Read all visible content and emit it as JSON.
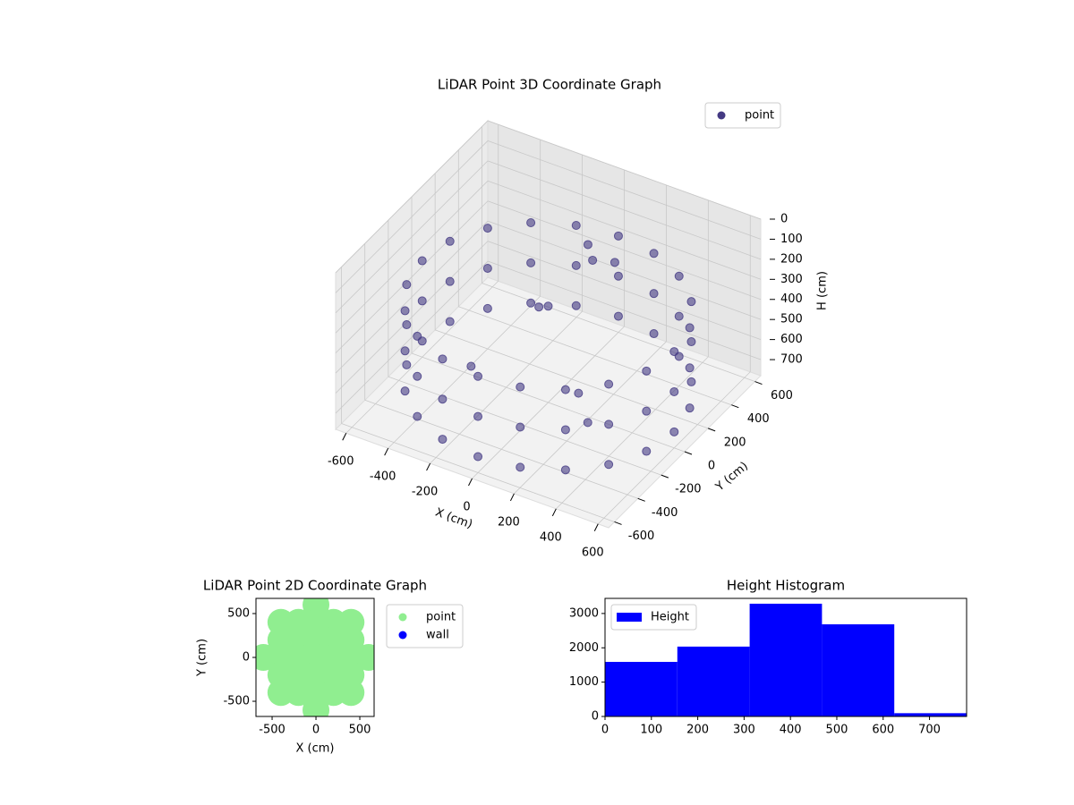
{
  "chart_data": [
    {
      "type": "scatter3d",
      "title": "LiDAR Point 3D Coordinate Graph",
      "xlabel": "X (cm)",
      "ylabel": "Y (cm)",
      "zlabel": "H (cm)",
      "xlim": [
        -650,
        650
      ],
      "ylim": [
        -650,
        650
      ],
      "zlim": [
        0,
        780
      ],
      "z_inverted": true,
      "xticks": [
        -600,
        -400,
        -200,
        0,
        200,
        400,
        600
      ],
      "yticks": [
        -600,
        -400,
        -200,
        0,
        200,
        400,
        600
      ],
      "zticks": [
        0,
        100,
        200,
        300,
        400,
        500,
        600,
        700
      ],
      "grid": true,
      "legend": "upper right",
      "series": [
        {
          "name": "point",
          "color": "#443a83",
          "x": [
            600,
            571,
            485,
            353,
            185,
            0,
            -185,
            -353,
            -485,
            -571,
            -600,
            -571,
            -485,
            -353,
            -185,
            0,
            185,
            353,
            485,
            571,
            600,
            571,
            485,
            353,
            185,
            0,
            -185,
            -353,
            -485,
            -571,
            -600,
            -571,
            -485,
            -353,
            -185,
            0,
            185,
            353,
            485,
            571,
            600,
            571,
            485,
            353,
            185,
            0,
            -185,
            -353,
            -485,
            -571,
            -600,
            -571,
            -485,
            -353,
            -185,
            0,
            185,
            353,
            485,
            571,
            100,
            50,
            -100,
            200,
            300,
            -200,
            0,
            150
          ],
          "y": [
            0,
            185,
            353,
            485,
            571,
            600,
            571,
            485,
            353,
            185,
            0,
            -185,
            -353,
            -485,
            -571,
            -600,
            -571,
            -485,
            -353,
            -185,
            0,
            185,
            353,
            485,
            571,
            600,
            571,
            485,
            353,
            185,
            0,
            -185,
            -353,
            -485,
            -571,
            -600,
            -571,
            -485,
            -353,
            -185,
            0,
            185,
            353,
            485,
            571,
            600,
            571,
            485,
            353,
            185,
            0,
            -185,
            -353,
            -485,
            -571,
            -600,
            -571,
            -485,
            -353,
            -185,
            200,
            250,
            100,
            -100,
            -200,
            -300,
            0,
            300
          ],
          "z": [
            300,
            300,
            300,
            300,
            300,
            300,
            300,
            300,
            300,
            300,
            300,
            300,
            300,
            300,
            300,
            300,
            300,
            300,
            300,
            300,
            500,
            500,
            500,
            500,
            500,
            500,
            500,
            500,
            500,
            500,
            500,
            500,
            500,
            500,
            500,
            500,
            500,
            500,
            500,
            500,
            700,
            700,
            700,
            700,
            700,
            700,
            700,
            700,
            700,
            700,
            700,
            700,
            700,
            700,
            700,
            700,
            700,
            700,
            700,
            700,
            150,
            120,
            400,
            600,
            650,
            500,
            300,
            200
          ]
        }
      ]
    },
    {
      "type": "scatter",
      "title": "LiDAR Point 2D Coordinate Graph",
      "xlabel": "X (cm)",
      "ylabel": "Y (cm)",
      "xlim": [
        -684,
        663
      ],
      "ylim": [
        -673,
        673
      ],
      "xticks": [
        -500,
        0,
        500
      ],
      "yticks": [
        -500,
        0,
        500
      ],
      "legend": "outside right",
      "series": [
        {
          "name": "point",
          "color": "#90ee90",
          "x": [
            0,
            -400,
            -200,
            0,
            200,
            400,
            -400,
            -200,
            0,
            200,
            400,
            -600,
            -400,
            -200,
            0,
            200,
            400,
            600,
            -400,
            -200,
            0,
            200,
            400,
            -400,
            -200,
            0,
            200,
            400,
            0
          ],
          "y": [
            600,
            400,
            400,
            400,
            400,
            400,
            200,
            200,
            200,
            200,
            200,
            0,
            0,
            0,
            0,
            0,
            0,
            0,
            -200,
            -200,
            -200,
            -200,
            -200,
            -400,
            -400,
            -400,
            -400,
            -400,
            -600
          ]
        },
        {
          "name": "wall",
          "color": "#0000ff",
          "x": [],
          "y": []
        }
      ]
    },
    {
      "type": "histogram",
      "title": "Height Histogram",
      "label": "Height",
      "color": "#0000ff",
      "bins": [
        0,
        156,
        312,
        468,
        624,
        780
      ],
      "counts": [
        1590,
        2035,
        3285,
        2685,
        95
      ],
      "xlim": [
        0,
        780
      ],
      "ylim": [
        0,
        3440
      ],
      "xticks": [
        0,
        100,
        200,
        300,
        400,
        500,
        600,
        700
      ],
      "yticks": [
        0,
        1000,
        2000,
        3000
      ],
      "legend": "upper left"
    }
  ]
}
